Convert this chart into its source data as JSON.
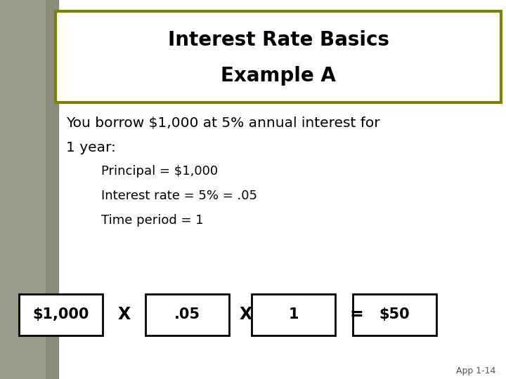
{
  "title_line1": "Interest Rate Basics",
  "title_line2": "Example A",
  "body_text1": "You borrow $1,000 at 5% annual interest for",
  "body_text2": "1 year:",
  "bullet1": "Principal = $1,000",
  "bullet2": "Interest rate = 5% = .05",
  "bullet3": "Time period = 1",
  "box_values": [
    "$1,000",
    ".05",
    "1",
    "$50"
  ],
  "operators": [
    "X",
    "X",
    "="
  ],
  "title_box_color": "#808000",
  "title_bg_color": "#ffffff",
  "bg_color": "#ffffff",
  "text_color": "#000000",
  "slide_bg_left": "#8B8B7A",
  "footer_text": "App 1-14"
}
